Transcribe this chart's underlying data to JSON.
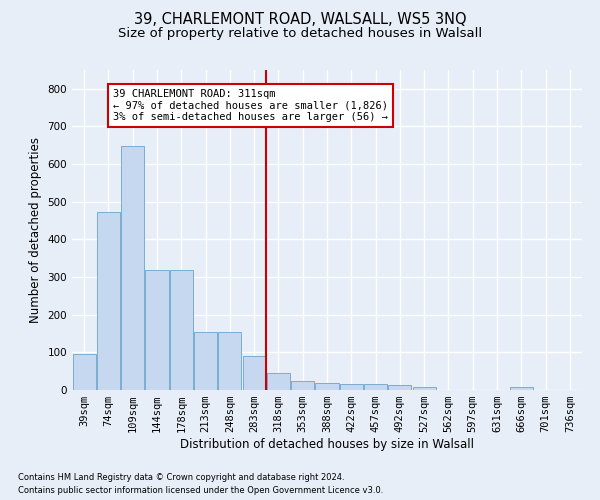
{
  "title1": "39, CHARLEMONT ROAD, WALSALL, WS5 3NQ",
  "title2": "Size of property relative to detached houses in Walsall",
  "xlabel": "Distribution of detached houses by size in Walsall",
  "ylabel": "Number of detached properties",
  "footnote1": "Contains HM Land Registry data © Crown copyright and database right 2024.",
  "footnote2": "Contains public sector information licensed under the Open Government Licence v3.0.",
  "bar_labels": [
    "39sqm",
    "74sqm",
    "109sqm",
    "144sqm",
    "178sqm",
    "213sqm",
    "248sqm",
    "283sqm",
    "318sqm",
    "353sqm",
    "388sqm",
    "422sqm",
    "457sqm",
    "492sqm",
    "527sqm",
    "562sqm",
    "597sqm",
    "631sqm",
    "666sqm",
    "701sqm",
    "736sqm"
  ],
  "bar_values": [
    95,
    472,
    648,
    320,
    320,
    155,
    155,
    90,
    45,
    25,
    18,
    16,
    15,
    13,
    7,
    0,
    0,
    0,
    7,
    0,
    0
  ],
  "bar_color": "#c5d8f0",
  "bar_edge_color": "#7aadd4",
  "bg_color": "#e8eef8",
  "grid_color": "#ffffff",
  "vline_color": "#cc0000",
  "annotation_text": "39 CHARLEMONT ROAD: 311sqm\n← 97% of detached houses are smaller (1,826)\n3% of semi-detached houses are larger (56) →",
  "annotation_box_color": "#cc0000",
  "ylim": [
    0,
    850
  ],
  "yticks": [
    0,
    100,
    200,
    300,
    400,
    500,
    600,
    700,
    800
  ],
  "title1_fontsize": 10.5,
  "title2_fontsize": 9.5,
  "axis_fontsize": 8.5,
  "tick_fontsize": 7.5,
  "annot_fontsize": 7.5,
  "footnote_fontsize": 6.0
}
